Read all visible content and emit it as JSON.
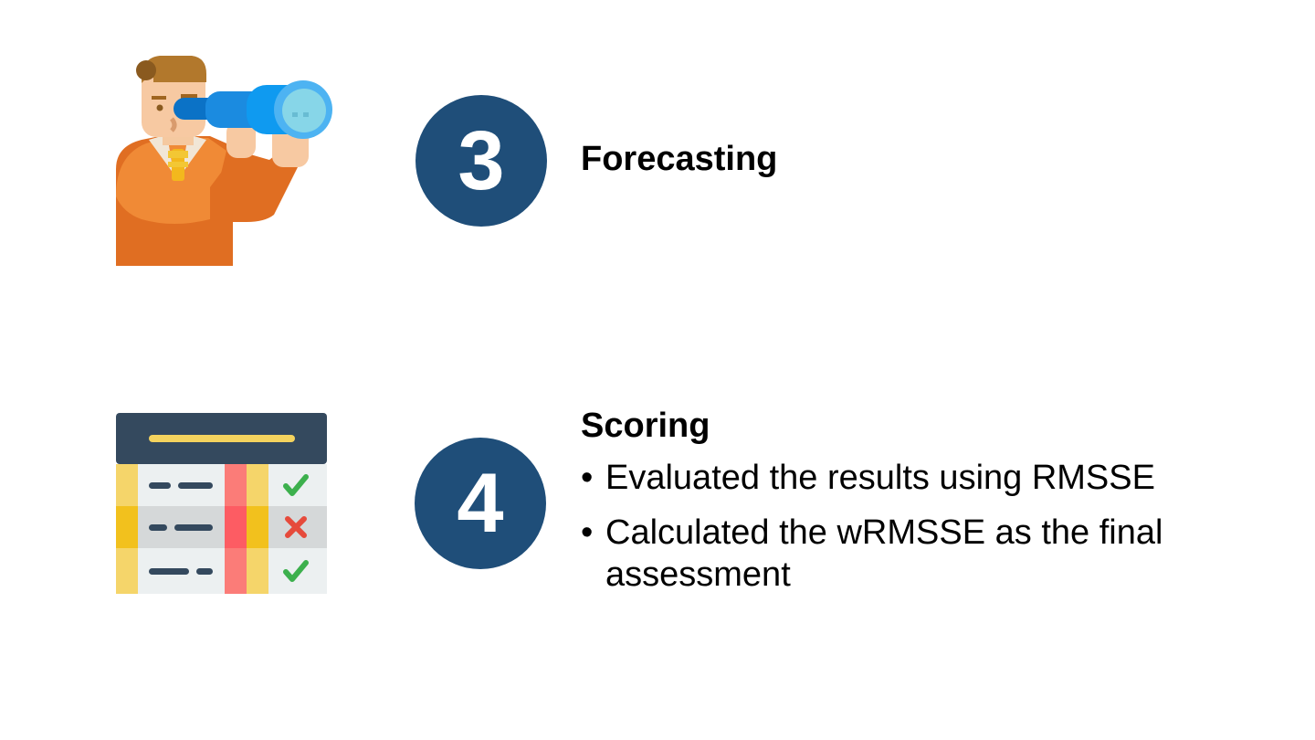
{
  "steps": [
    {
      "number": "3",
      "title": "Forecasting",
      "icon": "person-telescope-icon",
      "bullets": []
    },
    {
      "number": "4",
      "title": "Scoring",
      "icon": "scoring-table-icon",
      "bullets": [
        "Evaluated the results using RMSSE",
        "Calculated the wRMSSE as the final assessment"
      ]
    }
  ],
  "colors": {
    "circle": "#1f4e79",
    "text": "#000000",
    "background": "#ffffff"
  }
}
